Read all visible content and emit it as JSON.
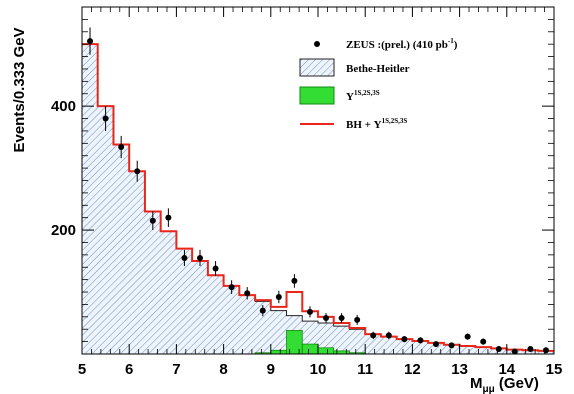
{
  "chart_data": {
    "type": "histogram",
    "xlabel": "Mμμ (GeV)",
    "ylabel": "Events/0.333 GeV",
    "xlim": [
      5,
      15
    ],
    "ylim": [
      0,
      560
    ],
    "x_ticks": [
      "5",
      "6",
      "7",
      "8",
      "9",
      "10",
      "11",
      "12",
      "13",
      "14",
      "15"
    ],
    "y_ticks": [
      "200",
      "400"
    ],
    "bin_width": 0.333,
    "bin_edges": [
      5.0,
      5.333,
      5.667,
      6.0,
      6.333,
      6.667,
      7.0,
      7.333,
      7.667,
      8.0,
      8.333,
      8.667,
      9.0,
      9.333,
      9.667,
      10.0,
      10.333,
      10.667,
      11.0,
      11.333,
      11.667,
      12.0,
      12.333,
      12.667,
      13.0,
      13.333,
      13.667,
      14.0,
      14.333,
      14.667,
      15.0
    ],
    "series": [
      {
        "name": "ZEUS :(prel.) (410 pb⁻¹)",
        "kind": "points",
        "color": "#000000",
        "x": [
          5.17,
          5.5,
          5.83,
          6.17,
          6.5,
          6.83,
          7.17,
          7.5,
          7.83,
          8.17,
          8.5,
          8.83,
          9.17,
          9.5,
          9.83,
          10.17,
          10.5,
          10.83,
          11.17,
          11.5,
          11.83,
          12.17,
          12.5,
          12.83,
          13.17,
          13.5,
          13.83,
          14.17,
          14.5,
          14.83
        ],
        "y": [
          505,
          380,
          334,
          295,
          215,
          220,
          155,
          155,
          138,
          108,
          98,
          70,
          92,
          118,
          68,
          58,
          58,
          55,
          30,
          30,
          24,
          22,
          16,
          14,
          28,
          20,
          8,
          4,
          8,
          6
        ],
        "err": [
          22,
          20,
          18,
          17,
          15,
          15,
          13,
          13,
          12,
          11,
          10,
          9,
          10,
          11,
          9,
          8,
          8,
          8,
          6,
          6,
          5,
          5,
          4,
          4,
          5,
          5,
          3,
          2,
          3,
          3
        ]
      },
      {
        "name": "Bethe-Heitler",
        "kind": "hatched-step",
        "color": "#5577aa",
        "values": [
          500,
          400,
          338,
          295,
          230,
          198,
          170,
          150,
          127,
          110,
          95,
          85,
          70,
          62,
          53,
          50,
          45,
          40,
          32,
          28,
          24,
          21,
          18,
          15,
          13,
          11,
          9,
          7,
          6,
          5
        ]
      },
      {
        "name": "Υ¹ˢʲˢʲ³ˢ",
        "kind": "filled-step",
        "color": "#33dd33",
        "values": [
          0,
          0,
          0,
          0,
          0,
          0,
          0,
          0,
          0,
          0,
          0,
          2,
          6,
          38,
          16,
          10,
          5,
          2,
          0,
          0,
          0,
          0,
          0,
          0,
          0,
          0,
          0,
          0,
          0,
          0
        ]
      },
      {
        "name": "BH + Υ¹ˢʲˢʲ³ˢ",
        "kind": "step-line",
        "color": "#e8261a",
        "values": [
          500,
          400,
          338,
          295,
          230,
          198,
          170,
          150,
          127,
          110,
          95,
          87,
          76,
          100,
          69,
          60,
          50,
          42,
          32,
          28,
          24,
          21,
          18,
          15,
          13,
          11,
          9,
          7,
          6,
          5
        ]
      }
    ],
    "legend": {
      "placement": "top-right",
      "entries": [
        {
          "label_main": "ZEUS :(prel.) (410 pb",
          "label_sup": "-1",
          "label_tail": ")",
          "marker": "point"
        },
        {
          "label_main": "Bethe-Heitler",
          "label_sup": "",
          "label_tail": "",
          "marker": "hatched-box"
        },
        {
          "label_main": "Υ",
          "label_sup": "1S,2S,3S",
          "label_tail": "",
          "marker": "green-box"
        },
        {
          "label_main": "BH + Υ",
          "label_sup": "1S,2S,3S",
          "label_tail": "",
          "marker": "red-line"
        }
      ]
    },
    "grid": false
  }
}
